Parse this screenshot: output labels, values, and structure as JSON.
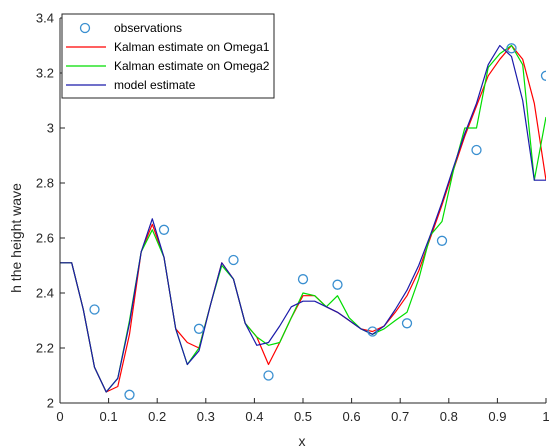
{
  "chart_data": {
    "type": "line",
    "xlabel": "x",
    "ylabel": "h the height wave",
    "xlim": [
      0,
      1
    ],
    "ylim": [
      2,
      3.4
    ],
    "x_ticks": [
      "0",
      "0.1",
      "0.2",
      "0.3",
      "0.4",
      "0.5",
      "0.6",
      "0.7",
      "0.8",
      "0.9",
      "1"
    ],
    "y_ticks": [
      "2",
      "2.2",
      "2.4",
      "2.6",
      "2.8",
      "3",
      "3.2",
      "3.4"
    ],
    "x_tick_values": [
      0,
      0.1,
      0.2,
      0.3,
      0.4,
      0.5,
      0.6,
      0.7,
      0.8,
      0.9,
      1
    ],
    "y_tick_values": [
      2,
      2.2,
      2.4,
      2.6,
      2.8,
      3,
      3.2,
      3.4
    ],
    "grid": false,
    "legend_position": "top-left",
    "observations": {
      "name": "observations",
      "color": "#3a8fd0",
      "marker": "circle",
      "x": [
        0.071,
        0.143,
        0.214,
        0.286,
        0.357,
        0.429,
        0.5,
        0.571,
        0.643,
        0.714,
        0.786,
        0.857,
        0.929,
        1.0
      ],
      "y": [
        2.34,
        2.03,
        2.63,
        2.27,
        2.52,
        2.1,
        2.45,
        2.43,
        2.26,
        2.29,
        2.59,
        2.92,
        3.29,
        3.19
      ]
    },
    "series": [
      {
        "name": "Kalman estimate on Omega1",
        "color": "#ff0000",
        "x": [
          0,
          0.024,
          0.048,
          0.071,
          0.095,
          0.119,
          0.143,
          0.167,
          0.19,
          0.214,
          0.238,
          0.262,
          0.286,
          0.31,
          0.333,
          0.357,
          0.381,
          0.405,
          0.429,
          0.452,
          0.476,
          0.5,
          0.524,
          0.548,
          0.571,
          0.595,
          0.619,
          0.643,
          0.667,
          0.69,
          0.714,
          0.738,
          0.762,
          0.786,
          0.81,
          0.833,
          0.857,
          0.881,
          0.905,
          0.929,
          0.952,
          0.976,
          1.0
        ],
        "y": [
          2.51,
          2.51,
          2.34,
          2.13,
          2.04,
          2.06,
          2.25,
          2.55,
          2.65,
          2.53,
          2.27,
          2.22,
          2.2,
          2.36,
          2.51,
          2.45,
          2.29,
          2.24,
          2.14,
          2.22,
          2.31,
          2.39,
          2.39,
          2.35,
          2.33,
          2.3,
          2.27,
          2.26,
          2.28,
          2.33,
          2.39,
          2.48,
          2.6,
          2.72,
          2.85,
          2.97,
          3.08,
          3.19,
          3.25,
          3.3,
          3.25,
          3.09,
          2.81
        ]
      },
      {
        "name": "Kalman estimate on Omega2",
        "color": "#00dd00",
        "x": [
          0,
          0.024,
          0.048,
          0.071,
          0.095,
          0.119,
          0.143,
          0.167,
          0.19,
          0.214,
          0.238,
          0.262,
          0.286,
          0.31,
          0.333,
          0.357,
          0.381,
          0.405,
          0.429,
          0.452,
          0.476,
          0.5,
          0.524,
          0.548,
          0.571,
          0.595,
          0.619,
          0.643,
          0.667,
          0.69,
          0.714,
          0.738,
          0.762,
          0.786,
          0.81,
          0.833,
          0.857,
          0.881,
          0.905,
          0.929,
          0.952,
          0.976,
          1.0
        ],
        "y": [
          2.51,
          2.51,
          2.34,
          2.13,
          2.04,
          2.09,
          2.3,
          2.55,
          2.63,
          2.53,
          2.27,
          2.14,
          2.2,
          2.36,
          2.5,
          2.45,
          2.29,
          2.24,
          2.21,
          2.22,
          2.31,
          2.4,
          2.39,
          2.35,
          2.39,
          2.31,
          2.27,
          2.25,
          2.27,
          2.3,
          2.33,
          2.45,
          2.61,
          2.66,
          2.85,
          3.0,
          3.0,
          3.22,
          3.27,
          3.3,
          3.23,
          2.81,
          3.04
        ]
      },
      {
        "name": "model estimate",
        "color": "#1a1aaa",
        "x": [
          0,
          0.024,
          0.048,
          0.071,
          0.095,
          0.119,
          0.143,
          0.167,
          0.19,
          0.214,
          0.238,
          0.262,
          0.286,
          0.31,
          0.333,
          0.357,
          0.381,
          0.405,
          0.429,
          0.452,
          0.476,
          0.5,
          0.524,
          0.548,
          0.571,
          0.595,
          0.619,
          0.643,
          0.667,
          0.69,
          0.714,
          0.738,
          0.762,
          0.786,
          0.81,
          0.833,
          0.857,
          0.881,
          0.905,
          0.929,
          0.952,
          0.976,
          1.0
        ],
        "y": [
          2.51,
          2.51,
          2.34,
          2.13,
          2.04,
          2.09,
          2.29,
          2.55,
          2.67,
          2.53,
          2.27,
          2.14,
          2.19,
          2.36,
          2.51,
          2.45,
          2.29,
          2.21,
          2.22,
          2.28,
          2.35,
          2.37,
          2.37,
          2.35,
          2.33,
          2.3,
          2.27,
          2.25,
          2.28,
          2.34,
          2.41,
          2.5,
          2.61,
          2.73,
          2.86,
          2.98,
          3.09,
          3.23,
          3.3,
          3.26,
          3.1,
          2.81,
          2.81
        ]
      }
    ]
  }
}
